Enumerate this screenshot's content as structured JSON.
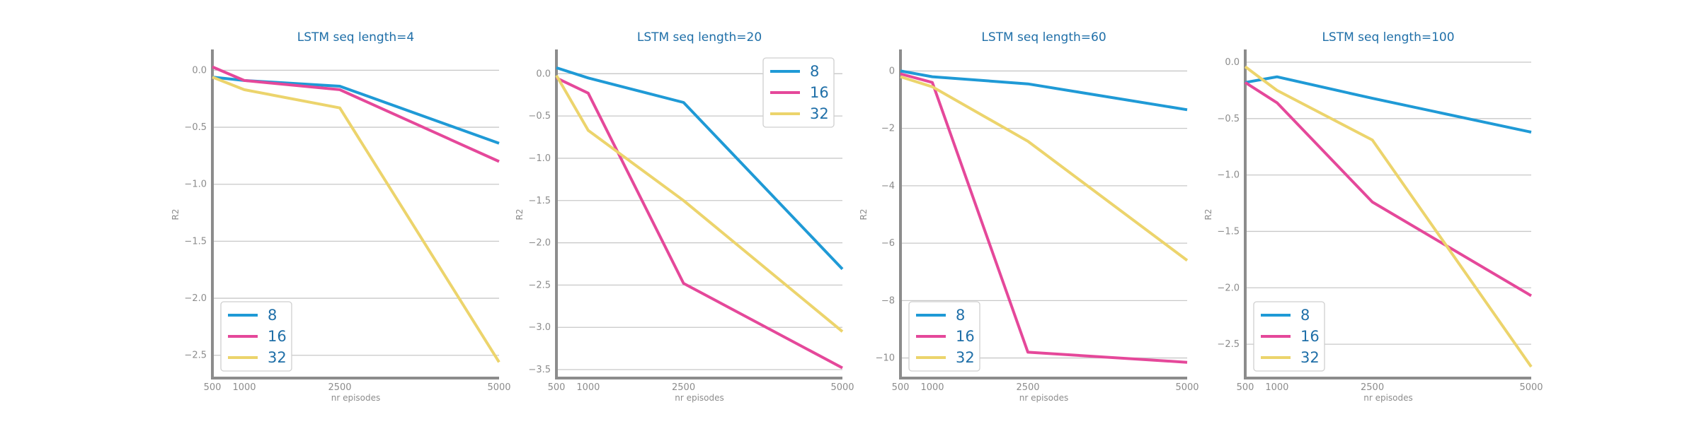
{
  "chart_data": [
    {
      "type": "line",
      "title": "LSTM seq length=4",
      "xlabel": "nr episodes",
      "ylabel": "R2",
      "x": [
        500,
        1000,
        2500,
        5000
      ],
      "xticks": [
        500,
        1000,
        2500,
        5000
      ],
      "xlim": [
        500,
        5000
      ],
      "ylim": [
        -2.7,
        0.17
      ],
      "yticks": [
        {
          "v": 0.0,
          "label": "0.0"
        },
        {
          "v": -0.5,
          "label": "−0.5"
        },
        {
          "v": -1.0,
          "label": "−1.0"
        },
        {
          "v": -1.5,
          "label": "−1.5"
        },
        {
          "v": -2.0,
          "label": "−2.0"
        },
        {
          "v": -2.5,
          "label": "−2.5"
        }
      ],
      "grid": true,
      "legend_position": "bottom-left",
      "series": [
        {
          "name": "8",
          "color": "#1f9ad6",
          "values": [
            -0.06,
            -0.09,
            -0.14,
            -0.64
          ]
        },
        {
          "name": "16",
          "color": "#e5489a",
          "values": [
            0.03,
            -0.09,
            -0.17,
            -0.8
          ]
        },
        {
          "name": "32",
          "color": "#ecd46c",
          "values": [
            -0.06,
            -0.17,
            -0.33,
            -2.56
          ]
        }
      ]
    },
    {
      "type": "line",
      "title": "LSTM seq length=20",
      "xlabel": "nr episodes",
      "ylabel": "R2",
      "x": [
        500,
        1000,
        2500,
        5000
      ],
      "xticks": [
        500,
        1000,
        2500,
        5000
      ],
      "xlim": [
        500,
        5000
      ],
      "ylim": [
        -3.6,
        0.27
      ],
      "yticks": [
        {
          "v": 0.0,
          "label": "0.0"
        },
        {
          "v": -0.5,
          "label": "−0.5"
        },
        {
          "v": -1.0,
          "label": "−1.0"
        },
        {
          "v": -1.5,
          "label": "−1.5"
        },
        {
          "v": -2.0,
          "label": "−2.0"
        },
        {
          "v": -2.5,
          "label": "−2.5"
        },
        {
          "v": -3.0,
          "label": "−3.0"
        },
        {
          "v": -3.5,
          "label": "−3.5"
        }
      ],
      "grid": true,
      "legend_position": "top-right",
      "series": [
        {
          "name": "8",
          "color": "#1f9ad6",
          "values": [
            0.07,
            -0.05,
            -0.34,
            -2.31
          ]
        },
        {
          "name": "16",
          "color": "#e5489a",
          "values": [
            -0.05,
            -0.23,
            -2.48,
            -3.48
          ]
        },
        {
          "name": "32",
          "color": "#ecd46c",
          "values": [
            -0.02,
            -0.67,
            -1.5,
            -3.05
          ]
        }
      ]
    },
    {
      "type": "line",
      "title": "LSTM seq length=60",
      "xlabel": "nr episodes",
      "ylabel": "R2",
      "x": [
        500,
        1000,
        2500,
        5000
      ],
      "xticks": [
        500,
        1000,
        2500,
        5000
      ],
      "xlim": [
        500,
        5000
      ],
      "ylim": [
        -10.7,
        0.7
      ],
      "yticks": [
        {
          "v": 0,
          "label": "0"
        },
        {
          "v": -2,
          "label": "−2"
        },
        {
          "v": -4,
          "label": "−4"
        },
        {
          "v": -6,
          "label": "−6"
        },
        {
          "v": -8,
          "label": "−8"
        },
        {
          "v": -10,
          "label": "−10"
        }
      ],
      "grid": true,
      "legend_position": "bottom-left",
      "series": [
        {
          "name": "8",
          "color": "#1f9ad6",
          "values": [
            0.0,
            -0.2,
            -0.45,
            -1.35
          ]
        },
        {
          "name": "16",
          "color": "#e5489a",
          "values": [
            -0.1,
            -0.4,
            -9.8,
            -10.15
          ]
        },
        {
          "name": "32",
          "color": "#ecd46c",
          "values": [
            -0.2,
            -0.55,
            -2.45,
            -6.6
          ]
        }
      ]
    },
    {
      "type": "line",
      "title": "LSTM seq length=100",
      "xlabel": "nr episodes",
      "ylabel": "R2",
      "x": [
        500,
        1000,
        2500,
        5000
      ],
      "xticks": [
        500,
        1000,
        2500,
        5000
      ],
      "xlim": [
        500,
        5000
      ],
      "ylim": [
        -2.8,
        0.1
      ],
      "yticks": [
        {
          "v": 0.0,
          "label": "0.0"
        },
        {
          "v": -0.5,
          "label": "−0.5"
        },
        {
          "v": -1.0,
          "label": "−1.0"
        },
        {
          "v": -1.5,
          "label": "−1.5"
        },
        {
          "v": -2.0,
          "label": "−2.0"
        },
        {
          "v": -2.5,
          "label": "−2.5"
        }
      ],
      "grid": true,
      "legend_position": "bottom-left",
      "series": [
        {
          "name": "8",
          "color": "#1f9ad6",
          "values": [
            -0.18,
            -0.13,
            -0.32,
            -0.62
          ]
        },
        {
          "name": "16",
          "color": "#e5489a",
          "values": [
            -0.18,
            -0.36,
            -1.24,
            -2.07
          ]
        },
        {
          "name": "32",
          "color": "#ecd46c",
          "values": [
            -0.04,
            -0.25,
            -0.69,
            -2.7
          ]
        }
      ]
    }
  ],
  "style": {
    "axis_color": "#8c8c8c",
    "grid_color": "#c8c8c8",
    "text_color": "#8c8c8c",
    "title_color": "#1f6fa8"
  }
}
